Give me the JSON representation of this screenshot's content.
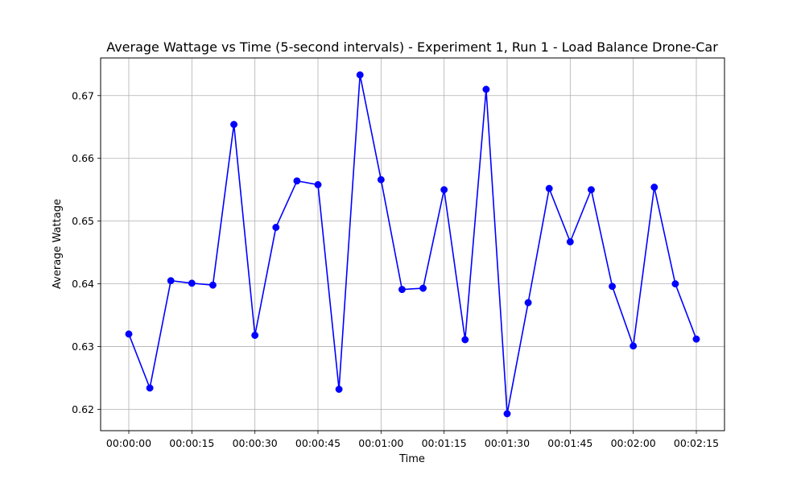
{
  "chart_data": {
    "type": "line",
    "title": "Average Wattage vs Time (5-second intervals) - Experiment 1, Run 1 - Load Balance Drone-Car",
    "xlabel": "Time",
    "ylabel": "Average Wattage",
    "x": [
      "00:00:00",
      "00:00:05",
      "00:00:10",
      "00:00:15",
      "00:00:20",
      "00:00:25",
      "00:00:30",
      "00:00:35",
      "00:00:40",
      "00:00:45",
      "00:00:50",
      "00:00:55",
      "00:01:00",
      "00:01:05",
      "00:01:10",
      "00:01:15",
      "00:01:20",
      "00:01:25",
      "00:01:30",
      "00:01:35",
      "00:01:40",
      "00:01:45",
      "00:01:50",
      "00:01:55",
      "00:02:00",
      "00:02:05",
      "00:02:10",
      "00:02:15"
    ],
    "values": [
      0.632,
      0.6234,
      0.6405,
      0.6401,
      0.6398,
      0.6654,
      0.6318,
      0.649,
      0.6564,
      0.6558,
      0.6232,
      0.6733,
      0.6566,
      0.6391,
      0.6393,
      0.655,
      0.6311,
      0.671,
      0.6193,
      0.637,
      0.6552,
      0.6467,
      0.655,
      0.6396,
      0.6301,
      0.6554,
      0.64,
      0.6312
    ],
    "xticks": [
      "00:00:00",
      "00:00:15",
      "00:00:30",
      "00:00:45",
      "00:01:00",
      "00:01:15",
      "00:01:30",
      "00:01:45",
      "00:02:00",
      "00:02:15"
    ],
    "yticks": [
      "0.62",
      "0.63",
      "0.64",
      "0.65",
      "0.66",
      "0.67"
    ],
    "ylim": [
      0.6166,
      0.676
    ],
    "grid": true,
    "line_color": "#0000ff",
    "marker_color": "#0000ff"
  }
}
